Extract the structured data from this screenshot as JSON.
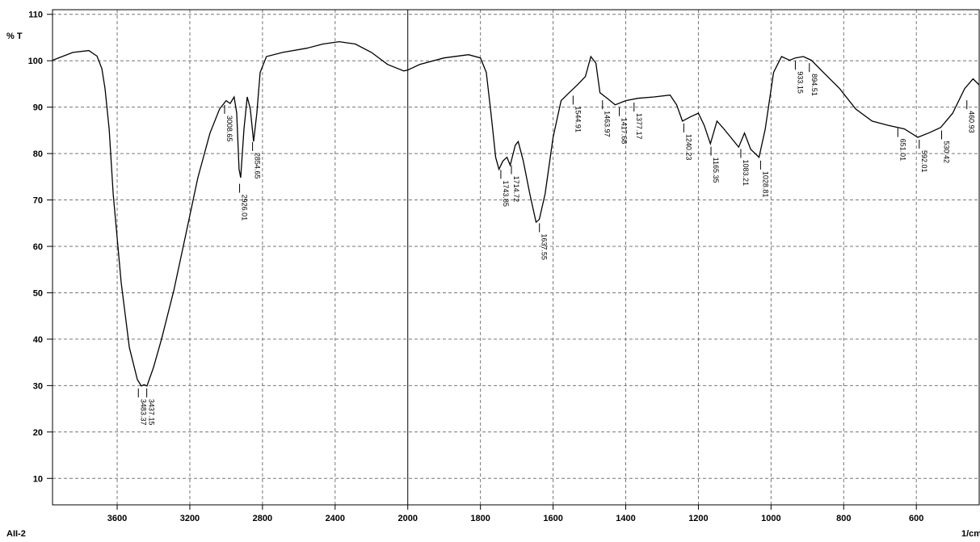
{
  "chart_data": {
    "type": "line",
    "y_label": "% T",
    "x_label": "1/cm",
    "sample": "AII-2",
    "xlim": [
      3956,
      427
    ],
    "xbreak": 2000,
    "ylim": [
      4.3,
      111
    ],
    "xticks": [
      3600,
      3200,
      2800,
      2400,
      2000,
      1800,
      1600,
      1400,
      1200,
      1000,
      800,
      600
    ],
    "yticks": [
      10,
      20,
      30,
      40,
      50,
      60,
      70,
      80,
      90,
      100,
      110
    ],
    "grid": true,
    "color": "#000000",
    "x": [
      3956,
      3844,
      3756,
      3711,
      3684,
      3667,
      3644,
      3622,
      3578,
      3533,
      3489,
      3467,
      3453,
      3436,
      3400,
      3356,
      3289,
      3222,
      3156,
      3089,
      3036,
      3000,
      2978,
      2956,
      2942,
      2929,
      2920,
      2902,
      2884,
      2867,
      2849,
      2831,
      2813,
      2778,
      2689,
      2556,
      2467,
      2378,
      2289,
      2200,
      2111,
      2022,
      2000,
      1967,
      1900,
      1833,
      1800,
      1784,
      1771,
      1758,
      1749,
      1738,
      1727,
      1718,
      1704,
      1696,
      1682,
      1664,
      1647,
      1638,
      1622,
      1600,
      1578,
      1556,
      1533,
      1511,
      1496,
      1482,
      1471,
      1451,
      1429,
      1400,
      1367,
      1322,
      1278,
      1260,
      1244,
      1222,
      1200,
      1184,
      1167,
      1149,
      1133,
      1111,
      1089,
      1073,
      1056,
      1033,
      1016,
      993,
      971,
      949,
      933,
      911,
      889,
      856,
      811,
      767,
      722,
      678,
      633,
      596,
      567,
      533,
      500,
      467,
      444,
      427
    ],
    "series": [
      {
        "name": "AII-2",
        "values": [
          100.1,
          101.8,
          102.2,
          101,
          98.3,
          94,
          85.3,
          71.3,
          52.2,
          38.2,
          31.3,
          29.9,
          30.2,
          29.9,
          33.9,
          40,
          50.4,
          62.6,
          74.8,
          84.4,
          89.6,
          91.4,
          90.8,
          92.2,
          88.7,
          76.6,
          74.8,
          85.3,
          92.2,
          89.6,
          82.6,
          88.7,
          97.5,
          100.9,
          101.8,
          102.7,
          103.6,
          104.1,
          103.6,
          101.8,
          99.2,
          97.8,
          98,
          99.2,
          100.6,
          101.3,
          100.6,
          97.5,
          88.7,
          79.2,
          76.6,
          78.4,
          79.2,
          77.5,
          81.8,
          82.6,
          78.4,
          71.3,
          65.2,
          65.8,
          71.3,
          83.5,
          91.4,
          93.1,
          94.8,
          96.6,
          100.9,
          99.5,
          93.1,
          91.9,
          90.5,
          91.4,
          91.9,
          92.2,
          92.6,
          90.5,
          87,
          87.9,
          88.7,
          86.1,
          82.1,
          87,
          85.6,
          83.5,
          81.4,
          84.4,
          80.9,
          79.2,
          85.3,
          97.5,
          100.9,
          100.1,
          100.6,
          100.9,
          100.1,
          97.5,
          94,
          89.6,
          87,
          86.1,
          85.3,
          83.5,
          84.4,
          85.6,
          88.7,
          94,
          96.1,
          94.8
        ]
      }
    ],
    "annotations": [
      {
        "x": 3483.37,
        "y": 29.9,
        "label": "3483.37"
      },
      {
        "x": 3437.15,
        "y": 29.9,
        "label": "3437.15"
      },
      {
        "x": 3008.65,
        "y": 91,
        "label": "3008.65"
      },
      {
        "x": 2926.01,
        "y": 74,
        "label": "2926.01"
      },
      {
        "x": 2854.65,
        "y": 83,
        "label": "2854.65"
      },
      {
        "x": 1743.85,
        "y": 77,
        "label": "1743.85"
      },
      {
        "x": 1714.72,
        "y": 78,
        "label": "1714.72"
      },
      {
        "x": 1637.55,
        "y": 65.5,
        "label": "1637.55"
      },
      {
        "x": 1544.91,
        "y": 93,
        "label": "1544.91"
      },
      {
        "x": 1463.97,
        "y": 92,
        "label": "1463.97"
      },
      {
        "x": 1417.68,
        "y": 90.5,
        "label": "1417.68"
      },
      {
        "x": 1377.17,
        "y": 91.5,
        "label": "1377.17"
      },
      {
        "x": 1240.23,
        "y": 87,
        "label": "1240.23"
      },
      {
        "x": 1165.35,
        "y": 82,
        "label": "1165.35"
      },
      {
        "x": 1083.21,
        "y": 81.5,
        "label": "1083.21"
      },
      {
        "x": 1028.81,
        "y": 79,
        "label": "1028.81"
      },
      {
        "x": 933.15,
        "y": 100.5,
        "label": "933.15"
      },
      {
        "x": 894.51,
        "y": 100,
        "label": "894.51"
      },
      {
        "x": 651.01,
        "y": 86,
        "label": "651.01"
      },
      {
        "x": 592.01,
        "y": 83.5,
        "label": "592.01"
      },
      {
        "x": 530.42,
        "y": 85.5,
        "label": "530.42"
      },
      {
        "x": 460.93,
        "y": 92,
        "label": "460.93"
      }
    ]
  }
}
